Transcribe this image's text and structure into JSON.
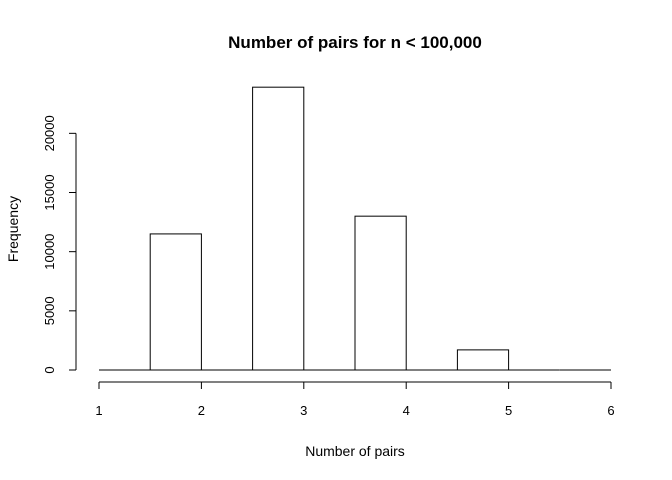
{
  "chart_data": {
    "type": "bar",
    "title": "Number of pairs for n < 100,000",
    "xlabel": "Number of pairs",
    "ylabel": "Frequency",
    "xlim": [
      1,
      6
    ],
    "ylim": [
      0,
      24000
    ],
    "x_ticks": [
      1,
      2,
      3,
      4,
      5,
      6
    ],
    "y_ticks": [
      0,
      5000,
      10000,
      15000,
      20000
    ],
    "grid": false,
    "legend": "none",
    "bins": [
      {
        "x_start": 1.0,
        "x_end": 1.5,
        "value": 0
      },
      {
        "x_start": 1.5,
        "x_end": 2.0,
        "value": 11500
      },
      {
        "x_start": 2.0,
        "x_end": 2.5,
        "value": 0
      },
      {
        "x_start": 2.5,
        "x_end": 3.0,
        "value": 23900
      },
      {
        "x_start": 3.0,
        "x_end": 3.5,
        "value": 0
      },
      {
        "x_start": 3.5,
        "x_end": 4.0,
        "value": 13000
      },
      {
        "x_start": 4.0,
        "x_end": 4.5,
        "value": 0
      },
      {
        "x_start": 4.5,
        "x_end": 5.0,
        "value": 1700
      },
      {
        "x_start": 5.0,
        "x_end": 5.5,
        "value": 0
      },
      {
        "x_start": 5.5,
        "x_end": 6.0,
        "value": 0
      }
    ],
    "colors": {
      "bar_fill": "#ffffff",
      "bar_stroke": "#000000",
      "axis": "#000000",
      "text": "#000000"
    }
  }
}
